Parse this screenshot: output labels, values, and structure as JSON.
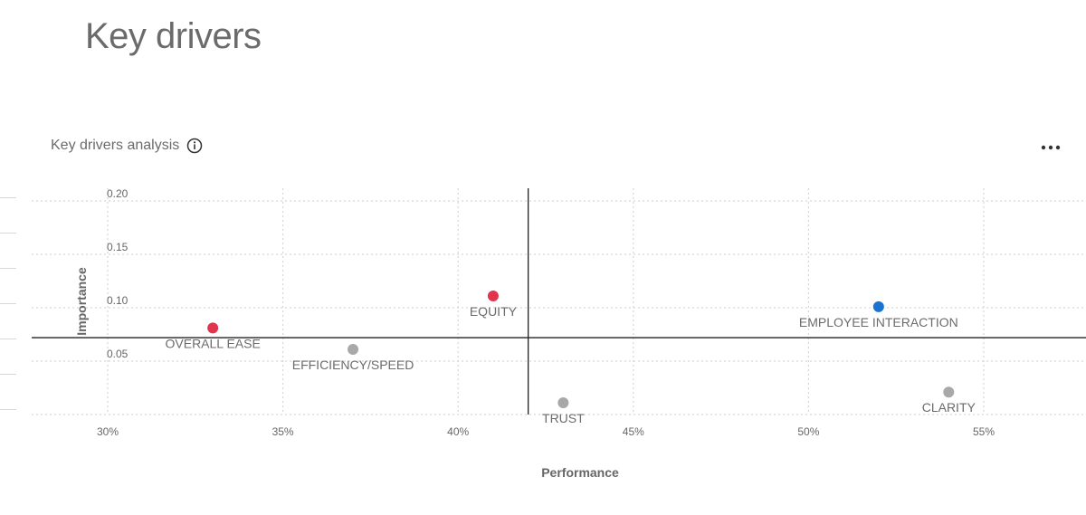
{
  "page": {
    "title": "Key drivers"
  },
  "card": {
    "title": "Key drivers analysis",
    "info_icon": "info-circle-icon",
    "more_icon": "more-horizontal-icon"
  },
  "colors": {
    "negative": "#e0354d",
    "positive": "#1a73d1",
    "neutral": "#a8a8a8",
    "grid": "#d6d6d6",
    "axis": "#222222",
    "text": "#6b6b6b"
  },
  "chart_data": {
    "type": "scatter",
    "xlabel": "Performance",
    "ylabel": "Importance",
    "xlim": [
      0.28,
      0.57
    ],
    "ylim": [
      0,
      0.21
    ],
    "x_ticks": [
      0.3,
      0.35,
      0.4,
      0.45,
      0.5,
      0.55
    ],
    "x_tick_labels": [
      "30%",
      "35%",
      "40%",
      "45%",
      "50%",
      "55%"
    ],
    "y_ticks": [
      0.05,
      0.1,
      0.15,
      0.2
    ],
    "y_tick_labels": [
      "0.05",
      "0.10",
      "0.15",
      "0.20"
    ],
    "grid": true,
    "quadrant_lines": {
      "x": 0.42,
      "y": 0.072
    },
    "points": [
      {
        "label": "OVERALL EASE",
        "x": 0.33,
        "y": 0.081,
        "status": "negative"
      },
      {
        "label": "EFFICIENCY/SPEED",
        "x": 0.37,
        "y": 0.061,
        "status": "neutral"
      },
      {
        "label": "EQUITY",
        "x": 0.41,
        "y": 0.111,
        "status": "negative"
      },
      {
        "label": "TRUST",
        "x": 0.43,
        "y": 0.011,
        "status": "neutral"
      },
      {
        "label": "EMPLOYEE INTERACTION",
        "x": 0.52,
        "y": 0.101,
        "status": "positive"
      },
      {
        "label": "CLARITY",
        "x": 0.54,
        "y": 0.021,
        "status": "neutral"
      }
    ]
  }
}
